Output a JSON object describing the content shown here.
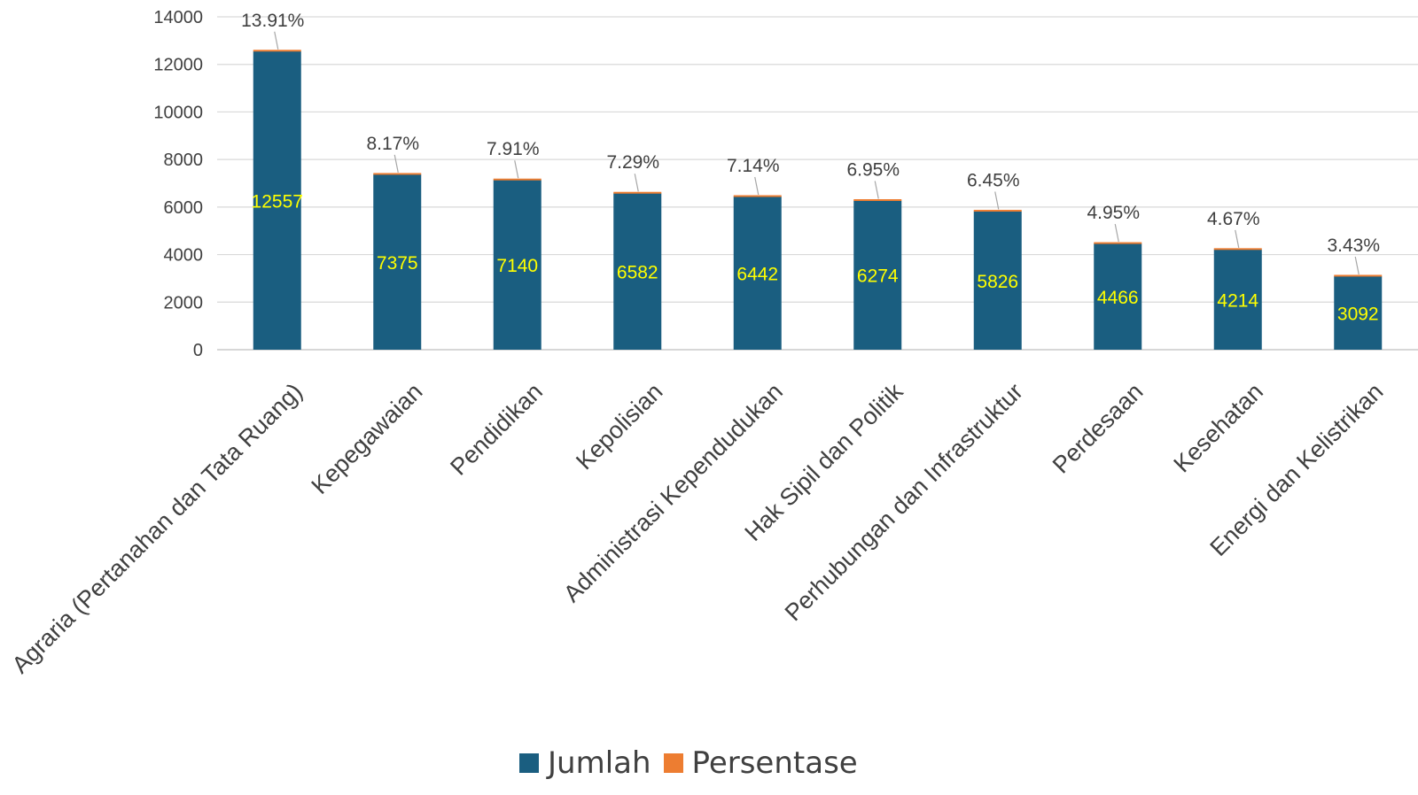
{
  "chart_data": {
    "type": "bar",
    "categories": [
      "Agraria (Pertanahan dan Tata Ruang)",
      "Kepegawaian",
      "Pendidikan",
      "Kepolisian",
      "Administrasi Kependudukan",
      "Hak Sipil dan Politik",
      "Perhubungan dan Infrastruktur",
      "Perdesaan",
      "Kesehatan",
      "Energi dan Kelistrikan"
    ],
    "series": [
      {
        "name": "Jumlah",
        "color": "#1a5e80",
        "values": [
          12557,
          7375,
          7140,
          6582,
          6442,
          6274,
          5826,
          4466,
          4214,
          3092
        ]
      },
      {
        "name": "Persentase",
        "color": "#ed7d31",
        "values": [
          13.91,
          8.17,
          7.91,
          7.29,
          7.14,
          6.95,
          6.45,
          4.95,
          4.67,
          3.43
        ],
        "labels": [
          "13.91%",
          "8.17%",
          "7.91%",
          "7.29%",
          "7.14%",
          "6.95%",
          "6.45%",
          "4.95%",
          "4.67%",
          "3.43%"
        ]
      }
    ],
    "yticks": [
      "0",
      "2000",
      "4000",
      "6000",
      "8000",
      "10000",
      "12000",
      "14000"
    ],
    "ylim": [
      0,
      14000
    ],
    "grid": true,
    "legend_position": "bottom",
    "value_label_color": "#ffff00"
  }
}
